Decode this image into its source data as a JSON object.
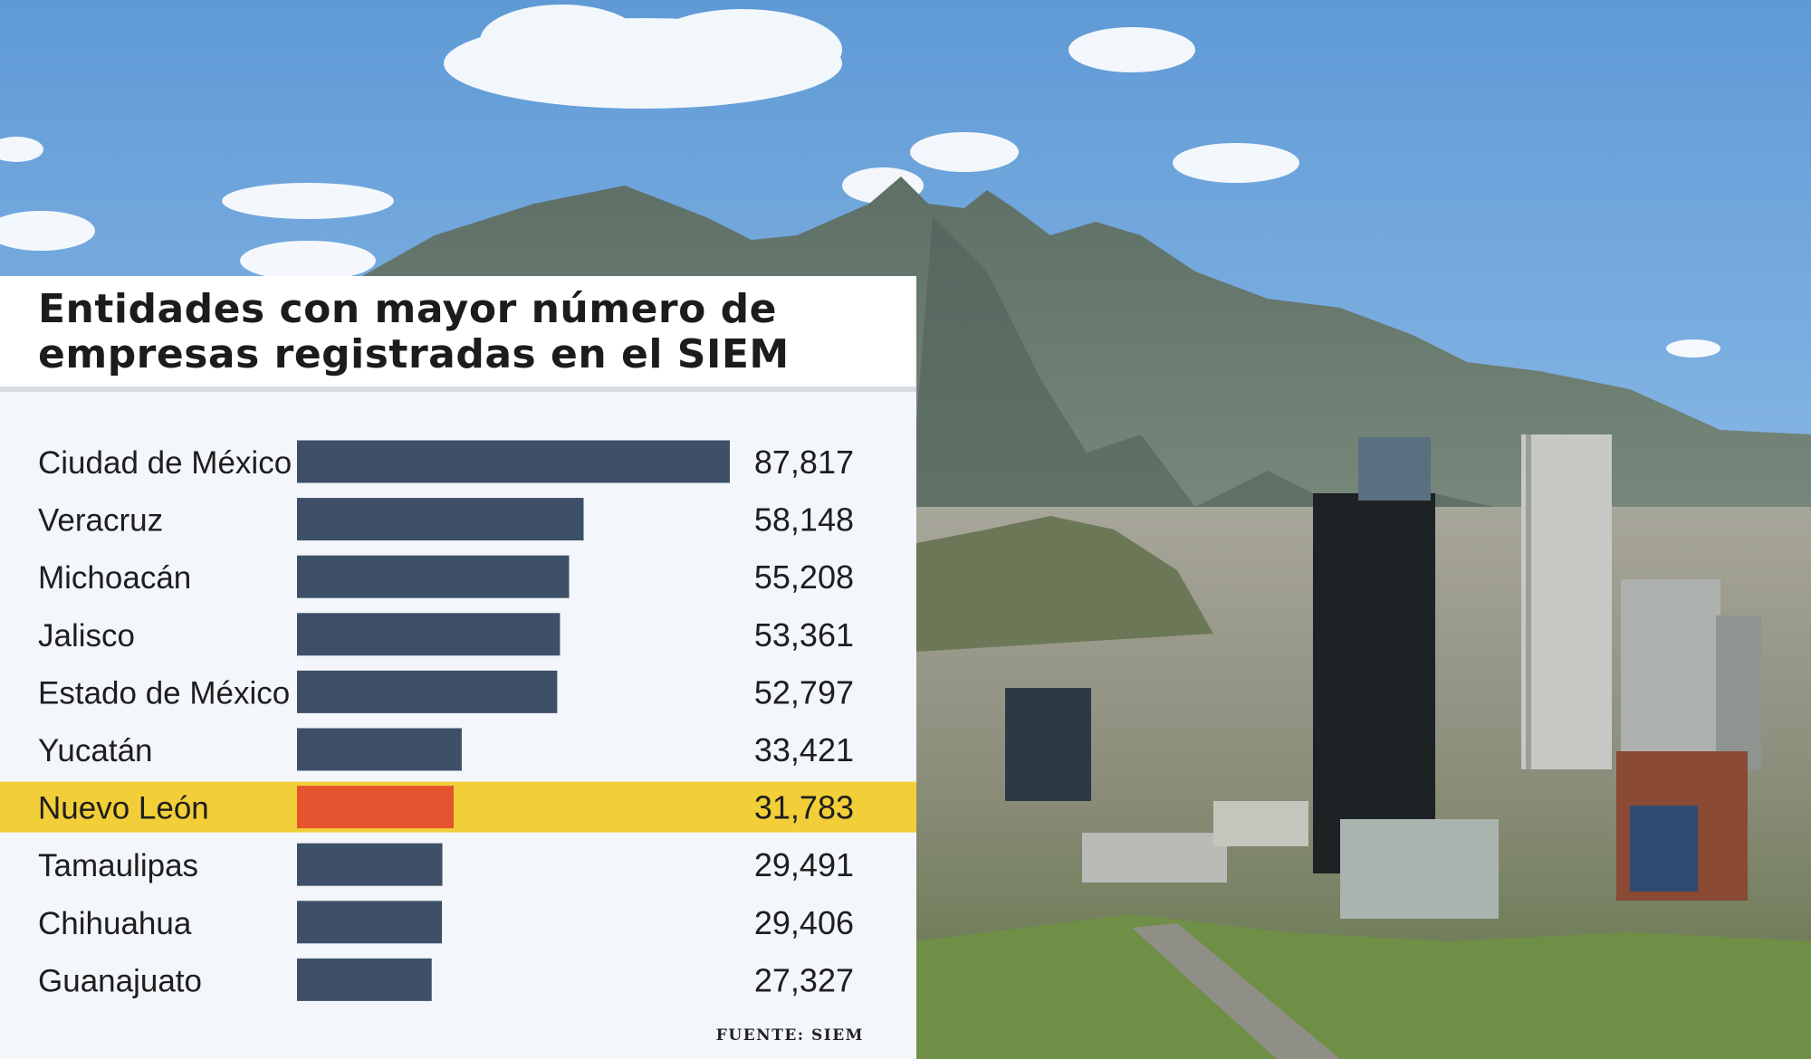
{
  "chart_data": {
    "type": "bar",
    "orientation": "horizontal",
    "title": "Entidades con mayor número de empresas registradas en el SIEM",
    "categories": [
      "Ciudad de México",
      "Veracruz",
      "Michoacán",
      "Jalisco",
      "Estado de México",
      "Yucatán",
      "Nuevo León",
      "Tamaulipas",
      "Chihuahua",
      "Guanajuato"
    ],
    "values": [
      87817,
      58148,
      55208,
      53361,
      52797,
      33421,
      31783,
      29491,
      29406,
      27327
    ],
    "value_labels": [
      "87,817",
      "58,148",
      "55,208",
      "53,361",
      "52,797",
      "33,421",
      "31,783",
      "29,491",
      "29,406",
      "27,327"
    ],
    "highlight_category": "Nuevo León",
    "xlim": [
      0,
      87817
    ],
    "grid": false,
    "colors": {
      "bar": "#3e5068",
      "highlight_bar": "#e5542f",
      "highlight_row": "#f2cf38",
      "label_text": "#1e1e1e"
    },
    "source": "FUENTE: SIEM"
  }
}
